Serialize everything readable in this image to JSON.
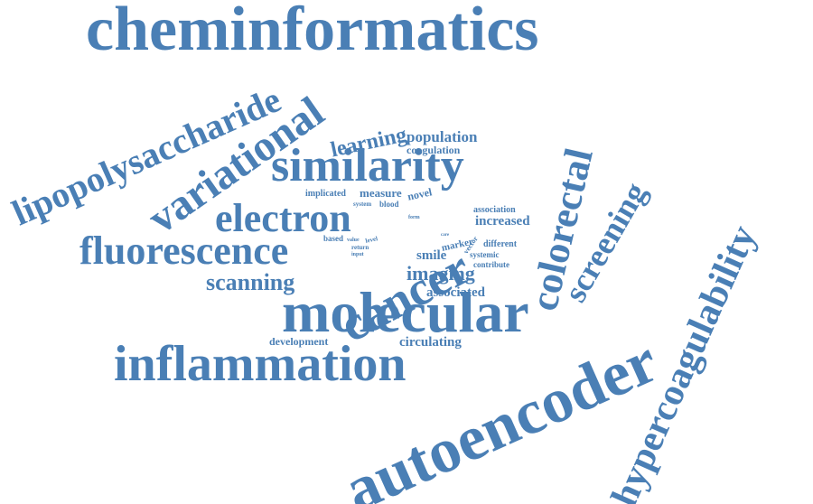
{
  "word_cloud": {
    "color": "#4a7fb5",
    "words": [
      "cheminformatics",
      "lipopolysaccharide",
      "variational",
      "similarity",
      "learning",
      "population",
      "coagulation",
      "colorectal",
      "screening",
      "hypercoagulability",
      "electron",
      "cancer",
      "fluorescence",
      "implicated",
      "measure",
      "novel",
      "association",
      "system",
      "blood",
      "increased",
      "form",
      "vector",
      "based",
      "value",
      "level",
      "marker",
      "different",
      "return",
      "input",
      "smile",
      "systemic",
      "contribute",
      "imaging",
      "scanning",
      "associated",
      "molecular",
      "autoencoder",
      "development",
      "circulating",
      "inflammation",
      "care"
    ]
  }
}
